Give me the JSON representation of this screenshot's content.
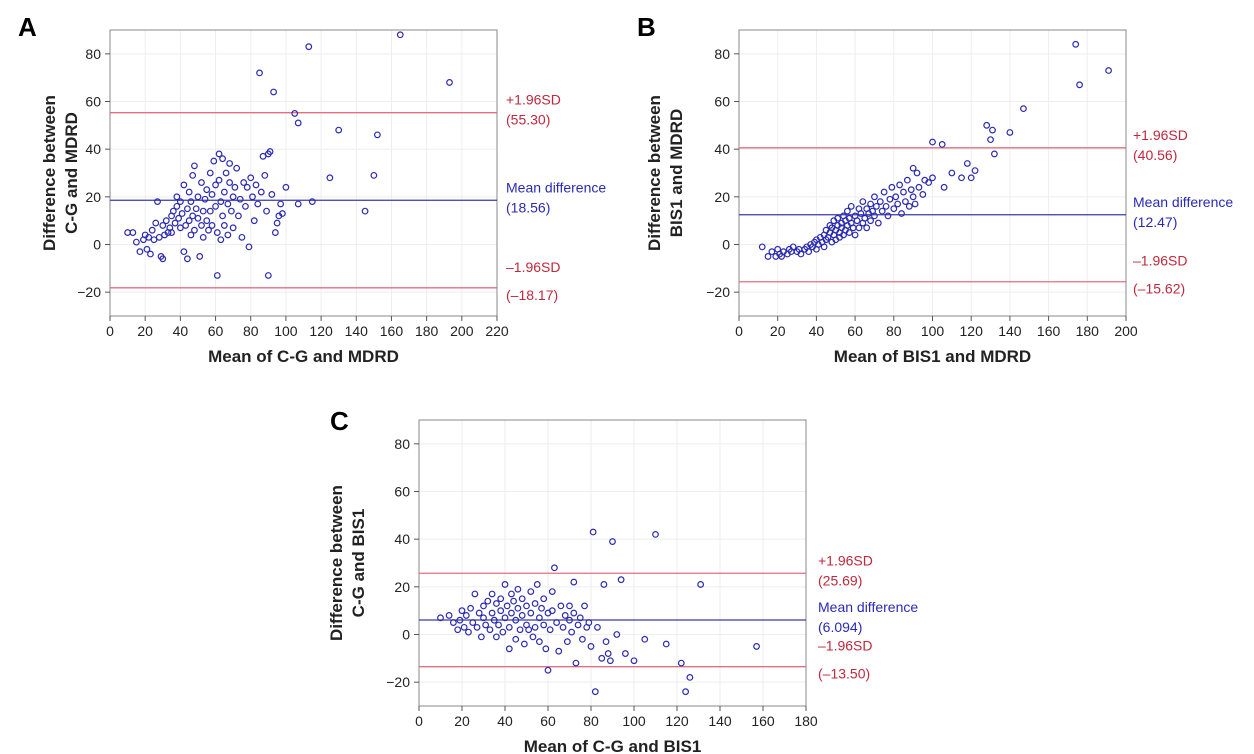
{
  "colors": {
    "point": "#2b2bb0",
    "mean_line": "#3a3aa8",
    "limit_line": "#e07080",
    "mean_text": "#2a2ab8",
    "limit_text": "#c0283c",
    "grid": "#eeeeee"
  },
  "chart_data": [
    {
      "panel": "A",
      "type": "scatter",
      "xlabel": "Mean of C-G and MDRD",
      "ylabel_lines": [
        "Difference between",
        "C-G and MDRD"
      ],
      "xlim": [
        0,
        220
      ],
      "ylim": [
        -30,
        90
      ],
      "xticks": [
        0,
        20,
        40,
        60,
        80,
        100,
        120,
        140,
        160,
        180,
        200,
        220
      ],
      "yticks": [
        -20,
        0,
        20,
        40,
        60,
        80
      ],
      "grid": true,
      "lines": [
        {
          "kind": "upper",
          "value": 55.3,
          "label": "+1.96SD",
          "value_label": "(55.30)"
        },
        {
          "kind": "mean",
          "value": 18.56,
          "label": "Mean difference",
          "value_label": "(18.56)"
        },
        {
          "kind": "lower",
          "value": -18.17,
          "label": "–1.96SD",
          "value_label": "(–18.17)"
        }
      ],
      "points": [
        [
          10,
          5
        ],
        [
          13,
          5
        ],
        [
          15,
          1
        ],
        [
          17,
          -3
        ],
        [
          19,
          2
        ],
        [
          20,
          4
        ],
        [
          21,
          -2
        ],
        [
          22,
          3
        ],
        [
          23,
          -4
        ],
        [
          24,
          6
        ],
        [
          25,
          2
        ],
        [
          26,
          9
        ],
        [
          27,
          18
        ],
        [
          28,
          3
        ],
        [
          29,
          -5
        ],
        [
          30,
          -6
        ],
        [
          30,
          8
        ],
        [
          31,
          4
        ],
        [
          32,
          10
        ],
        [
          33,
          5
        ],
        [
          34,
          7
        ],
        [
          35,
          12
        ],
        [
          35,
          5
        ],
        [
          36,
          14
        ],
        [
          37,
          9
        ],
        [
          38,
          16
        ],
        [
          38,
          20
        ],
        [
          39,
          11
        ],
        [
          40,
          7
        ],
        [
          40,
          18
        ],
        [
          41,
          13
        ],
        [
          42,
          25
        ],
        [
          42,
          -3
        ],
        [
          43,
          8
        ],
        [
          44,
          15
        ],
        [
          44,
          -6
        ],
        [
          45,
          10
        ],
        [
          45,
          22
        ],
        [
          46,
          18
        ],
        [
          46,
          4
        ],
        [
          47,
          29
        ],
        [
          47,
          12
        ],
        [
          48,
          33
        ],
        [
          48,
          6
        ],
        [
          49,
          15
        ],
        [
          50,
          11
        ],
        [
          50,
          20
        ],
        [
          51,
          -5
        ],
        [
          52,
          8
        ],
        [
          52,
          26
        ],
        [
          53,
          14
        ],
        [
          53,
          3
        ],
        [
          54,
          19
        ],
        [
          55,
          10
        ],
        [
          55,
          23
        ],
        [
          56,
          6
        ],
        [
          57,
          14
        ],
        [
          57,
          30
        ],
        [
          58,
          21
        ],
        [
          58,
          8
        ],
        [
          59,
          35
        ],
        [
          60,
          16
        ],
        [
          60,
          25
        ],
        [
          61,
          -13
        ],
        [
          61,
          5
        ],
        [
          62,
          27
        ],
        [
          62,
          38
        ],
        [
          63,
          18
        ],
        [
          63,
          2
        ],
        [
          64,
          36
        ],
        [
          64,
          12
        ],
        [
          65,
          22
        ],
        [
          65,
          8
        ],
        [
          66,
          30
        ],
        [
          67,
          17
        ],
        [
          67,
          4
        ],
        [
          68,
          26
        ],
        [
          68,
          34
        ],
        [
          69,
          14
        ],
        [
          70,
          20
        ],
        [
          70,
          7
        ],
        [
          71,
          24
        ],
        [
          72,
          32
        ],
        [
          73,
          12
        ],
        [
          74,
          19
        ],
        [
          75,
          3
        ],
        [
          76,
          26
        ],
        [
          77,
          16
        ],
        [
          78,
          24
        ],
        [
          79,
          -1
        ],
        [
          80,
          28
        ],
        [
          81,
          20
        ],
        [
          82,
          10
        ],
        [
          83,
          25
        ],
        [
          84,
          17
        ],
        [
          85,
          72
        ],
        [
          86,
          22
        ],
        [
          87,
          37
        ],
        [
          88,
          29
        ],
        [
          89,
          14
        ],
        [
          90,
          -13
        ],
        [
          90,
          38
        ],
        [
          91,
          39
        ],
        [
          92,
          21
        ],
        [
          93,
          64
        ],
        [
          94,
          5
        ],
        [
          95,
          9
        ],
        [
          96,
          12
        ],
        [
          97,
          17
        ],
        [
          98,
          13
        ],
        [
          100,
          24
        ],
        [
          105,
          55
        ],
        [
          107,
          17
        ],
        [
          107,
          51
        ],
        [
          113,
          83
        ],
        [
          115,
          18
        ],
        [
          125,
          28
        ],
        [
          130,
          48
        ],
        [
          145,
          14
        ],
        [
          150,
          29
        ],
        [
          152,
          46
        ],
        [
          165,
          88
        ],
        [
          193,
          68
        ]
      ]
    },
    {
      "panel": "B",
      "type": "scatter",
      "xlabel": "Mean of BIS1 and MDRD",
      "ylabel_lines": [
        "Difference between",
        "BIS1 and MDRD"
      ],
      "xlim": [
        0,
        200
      ],
      "ylim": [
        -30,
        90
      ],
      "xticks": [
        0,
        20,
        40,
        60,
        80,
        100,
        120,
        140,
        160,
        180,
        200
      ],
      "yticks": [
        -20,
        0,
        20,
        40,
        60,
        80
      ],
      "grid": true,
      "lines": [
        {
          "kind": "upper",
          "value": 40.56,
          "label": "+1.96SD",
          "value_label": "(40.56)"
        },
        {
          "kind": "mean",
          "value": 12.47,
          "label": "Mean difference",
          "value_label": "(12.47)"
        },
        {
          "kind": "lower",
          "value": -15.62,
          "label": "–1.96SD",
          "value_label": "(–15.62)"
        }
      ],
      "points": [
        [
          12,
          -1
        ],
        [
          15,
          -5
        ],
        [
          17,
          -3
        ],
        [
          19,
          -5
        ],
        [
          20,
          -2
        ],
        [
          21,
          -4
        ],
        [
          22,
          -5
        ],
        [
          23,
          -3
        ],
        [
          25,
          -4
        ],
        [
          26,
          -2
        ],
        [
          27,
          -3
        ],
        [
          28,
          -1
        ],
        [
          30,
          -3
        ],
        [
          31,
          -2
        ],
        [
          32,
          -4
        ],
        [
          34,
          -2
        ],
        [
          35,
          -1
        ],
        [
          36,
          -3
        ],
        [
          37,
          0
        ],
        [
          38,
          -1
        ],
        [
          39,
          1
        ],
        [
          40,
          -2
        ],
        [
          40,
          2
        ],
        [
          41,
          0
        ],
        [
          42,
          3
        ],
        [
          43,
          1
        ],
        [
          44,
          4
        ],
        [
          44,
          -1
        ],
        [
          45,
          2
        ],
        [
          45,
          6
        ],
        [
          46,
          3
        ],
        [
          47,
          5
        ],
        [
          47,
          8
        ],
        [
          48,
          1
        ],
        [
          48,
          7
        ],
        [
          49,
          4
        ],
        [
          49,
          10
        ],
        [
          50,
          6
        ],
        [
          50,
          2
        ],
        [
          51,
          8
        ],
        [
          51,
          11
        ],
        [
          52,
          5
        ],
        [
          52,
          3
        ],
        [
          53,
          9
        ],
        [
          53,
          7
        ],
        [
          54,
          4
        ],
        [
          54,
          12
        ],
        [
          55,
          6
        ],
        [
          55,
          10
        ],
        [
          56,
          8
        ],
        [
          56,
          14
        ],
        [
          57,
          5
        ],
        [
          57,
          11
        ],
        [
          58,
          9
        ],
        [
          58,
          16
        ],
        [
          59,
          7
        ],
        [
          60,
          12
        ],
        [
          60,
          4
        ],
        [
          61,
          10
        ],
        [
          62,
          15
        ],
        [
          62,
          7
        ],
        [
          63,
          13
        ],
        [
          64,
          9
        ],
        [
          64,
          18
        ],
        [
          65,
          11
        ],
        [
          66,
          15
        ],
        [
          66,
          7
        ],
        [
          67,
          13
        ],
        [
          68,
          17
        ],
        [
          68,
          10
        ],
        [
          69,
          14
        ],
        [
          70,
          12
        ],
        [
          70,
          20
        ],
        [
          71,
          16
        ],
        [
          72,
          9
        ],
        [
          73,
          18
        ],
        [
          74,
          14
        ],
        [
          75,
          22
        ],
        [
          76,
          16
        ],
        [
          77,
          12
        ],
        [
          78,
          19
        ],
        [
          79,
          24
        ],
        [
          80,
          15
        ],
        [
          81,
          20
        ],
        [
          82,
          17
        ],
        [
          83,
          25
        ],
        [
          84,
          13
        ],
        [
          85,
          22
        ],
        [
          86,
          18
        ],
        [
          87,
          27
        ],
        [
          88,
          16
        ],
        [
          89,
          23
        ],
        [
          90,
          20
        ],
        [
          90,
          32
        ],
        [
          91,
          17
        ],
        [
          92,
          30
        ],
        [
          93,
          24
        ],
        [
          95,
          21
        ],
        [
          96,
          27
        ],
        [
          98,
          26
        ],
        [
          100,
          28
        ],
        [
          100,
          43
        ],
        [
          105,
          42
        ],
        [
          106,
          24
        ],
        [
          110,
          30
        ],
        [
          115,
          28
        ],
        [
          118,
          34
        ],
        [
          120,
          28
        ],
        [
          122,
          31
        ],
        [
          128,
          50
        ],
        [
          130,
          44
        ],
        [
          131,
          48
        ],
        [
          132,
          38
        ],
        [
          140,
          47
        ],
        [
          147,
          57
        ],
        [
          174,
          84
        ],
        [
          176,
          67
        ],
        [
          191,
          73
        ]
      ]
    },
    {
      "panel": "C",
      "type": "scatter",
      "xlabel": "Mean of C-G and BIS1",
      "ylabel_lines": [
        "Difference between",
        "C-G and BIS1"
      ],
      "xlim": [
        0,
        180
      ],
      "ylim": [
        -30,
        90
      ],
      "xticks": [
        0,
        20,
        40,
        60,
        80,
        100,
        120,
        140,
        160,
        180
      ],
      "yticks": [
        -20,
        0,
        20,
        40,
        60,
        80
      ],
      "grid": true,
      "lines": [
        {
          "kind": "upper",
          "value": 25.69,
          "label": "+1.96SD",
          "value_label": "(25.69)"
        },
        {
          "kind": "mean",
          "value": 6.094,
          "label": "Mean difference",
          "value_label": "(6.094)"
        },
        {
          "kind": "lower",
          "value": -13.5,
          "label": "–1.96SD",
          "value_label": "(–13.50)"
        }
      ],
      "points": [
        [
          10,
          7
        ],
        [
          14,
          8
        ],
        [
          16,
          5
        ],
        [
          18,
          2
        ],
        [
          19,
          6
        ],
        [
          20,
          10
        ],
        [
          21,
          3
        ],
        [
          22,
          8
        ],
        [
          23,
          1
        ],
        [
          24,
          11
        ],
        [
          25,
          5
        ],
        [
          26,
          17
        ],
        [
          27,
          3
        ],
        [
          28,
          9
        ],
        [
          29,
          -1
        ],
        [
          30,
          7
        ],
        [
          30,
          12
        ],
        [
          31,
          4
        ],
        [
          32,
          14
        ],
        [
          33,
          2
        ],
        [
          34,
          9
        ],
        [
          34,
          17
        ],
        [
          35,
          6
        ],
        [
          36,
          13
        ],
        [
          36,
          -1
        ],
        [
          37,
          4
        ],
        [
          38,
          10
        ],
        [
          38,
          15
        ],
        [
          39,
          1
        ],
        [
          40,
          7
        ],
        [
          40,
          21
        ],
        [
          41,
          12
        ],
        [
          42,
          3
        ],
        [
          42,
          -6
        ],
        [
          43,
          9
        ],
        [
          43,
          17
        ],
        [
          44,
          14
        ],
        [
          45,
          -2
        ],
        [
          45,
          6
        ],
        [
          46,
          19
        ],
        [
          46,
          11
        ],
        [
          47,
          2
        ],
        [
          48,
          8
        ],
        [
          48,
          15
        ],
        [
          49,
          -4
        ],
        [
          50,
          4
        ],
        [
          50,
          12
        ],
        [
          51,
          2
        ],
        [
          52,
          18
        ],
        [
          52,
          9
        ],
        [
          53,
          -1
        ],
        [
          54,
          13
        ],
        [
          54,
          3
        ],
        [
          55,
          21
        ],
        [
          56,
          7
        ],
        [
          56,
          -3
        ],
        [
          57,
          11
        ],
        [
          58,
          4
        ],
        [
          58,
          15
        ],
        [
          59,
          -6
        ],
        [
          60,
          9
        ],
        [
          60,
          -15
        ],
        [
          61,
          2
        ],
        [
          62,
          18
        ],
        [
          62,
          10
        ],
        [
          63,
          28
        ],
        [
          64,
          5
        ],
        [
          65,
          -7
        ],
        [
          66,
          12
        ],
        [
          67,
          3
        ],
        [
          68,
          8
        ],
        [
          69,
          -3
        ],
        [
          70,
          6
        ],
        [
          70,
          12
        ],
        [
          71,
          1
        ],
        [
          72,
          22
        ],
        [
          72,
          9
        ],
        [
          73,
          -12
        ],
        [
          74,
          4
        ],
        [
          75,
          7
        ],
        [
          76,
          -2
        ],
        [
          77,
          12
        ],
        [
          78,
          3
        ],
        [
          79,
          5
        ],
        [
          80,
          -5
        ],
        [
          81,
          43
        ],
        [
          82,
          -24
        ],
        [
          83,
          3
        ],
        [
          85,
          -10
        ],
        [
          86,
          21
        ],
        [
          87,
          -3
        ],
        [
          88,
          -8
        ],
        [
          89,
          -11
        ],
        [
          90,
          39
        ],
        [
          92,
          0
        ],
        [
          94,
          23
        ],
        [
          96,
          -8
        ],
        [
          100,
          -11
        ],
        [
          105,
          -2
        ],
        [
          110,
          42
        ],
        [
          115,
          -4
        ],
        [
          122,
          -12
        ],
        [
          124,
          -24
        ],
        [
          126,
          -18
        ],
        [
          131,
          21
        ],
        [
          157,
          -5
        ]
      ]
    }
  ]
}
